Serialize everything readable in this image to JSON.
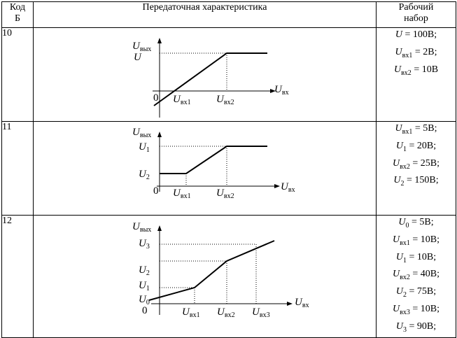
{
  "header": {
    "code_label": "Код Б",
    "char_label": "Передаточная характеристика",
    "set_label": "Рабочий набор"
  },
  "rows": [
    {
      "code": "10",
      "params": [
        {
          "sym": "U",
          "sub": "",
          "val": " = 100В;"
        },
        {
          "sym": "U",
          "sub": "вх1",
          "val": " = 2В;"
        },
        {
          "sym": "U",
          "sub": "вх2",
          "val": " = 10В"
        }
      ],
      "graph": {
        "y_axis_label": {
          "sym": "U",
          "sub": "вых"
        },
        "x_axis_label": {
          "sym": "U",
          "sub": "вх"
        },
        "origin": "0",
        "y_levels": [
          {
            "sym": "U",
            "sub": ""
          }
        ],
        "x_ticks": [
          {
            "sym": "U",
            "sub": "вх1"
          },
          {
            "sym": "U",
            "sub": "вх2"
          }
        ]
      }
    },
    {
      "code": "11",
      "params": [
        {
          "sym": "U",
          "sub": "вх1",
          "val": " = 5В;"
        },
        {
          "sym": "U",
          "sub": "1",
          "val": " = 20В;"
        },
        {
          "sym": "U",
          "sub": "вх2",
          "val": " = 25В;"
        },
        {
          "sym": "U",
          "sub": "2",
          "val": " = 150В;"
        }
      ],
      "graph": {
        "y_axis_label": {
          "sym": "U",
          "sub": "вых"
        },
        "x_axis_label": {
          "sym": "U",
          "sub": "вх"
        },
        "origin": "0",
        "y_levels": [
          {
            "sym": "U",
            "sub": "1"
          },
          {
            "sym": "U",
            "sub": "2"
          }
        ],
        "x_ticks": [
          {
            "sym": "U",
            "sub": "вх1"
          },
          {
            "sym": "U",
            "sub": "вх2"
          }
        ]
      }
    },
    {
      "code": "12",
      "params": [
        {
          "sym": "U",
          "sub": "0",
          "val": " = 5В;"
        },
        {
          "sym": "U",
          "sub": "вх1",
          "val": " = 10В;"
        },
        {
          "sym": "U",
          "sub": "1",
          "val": " = 10В;"
        },
        {
          "sym": "U",
          "sub": "вх2",
          "val": " = 40В;"
        },
        {
          "sym": "U",
          "sub": "2",
          "val": " = 75В;"
        },
        {
          "sym": "U",
          "sub": "вх3",
          "val": " = 10В;"
        },
        {
          "sym": "U",
          "sub": "3",
          "val": " = 90В;"
        }
      ],
      "graph": {
        "y_axis_label": {
          "sym": "U",
          "sub": "вых"
        },
        "x_axis_label": {
          "sym": "U",
          "sub": "вх"
        },
        "origin": "0",
        "y_levels": [
          {
            "sym": "U",
            "sub": "3"
          },
          {
            "sym": "U",
            "sub": "2"
          },
          {
            "sym": "U",
            "sub": "1"
          },
          {
            "sym": "U",
            "sub": "0"
          }
        ],
        "x_ticks": [
          {
            "sym": "U",
            "sub": "вх1"
          },
          {
            "sym": "U",
            "sub": "вх2"
          },
          {
            "sym": "U",
            "sub": "вх3"
          }
        ]
      }
    }
  ]
}
